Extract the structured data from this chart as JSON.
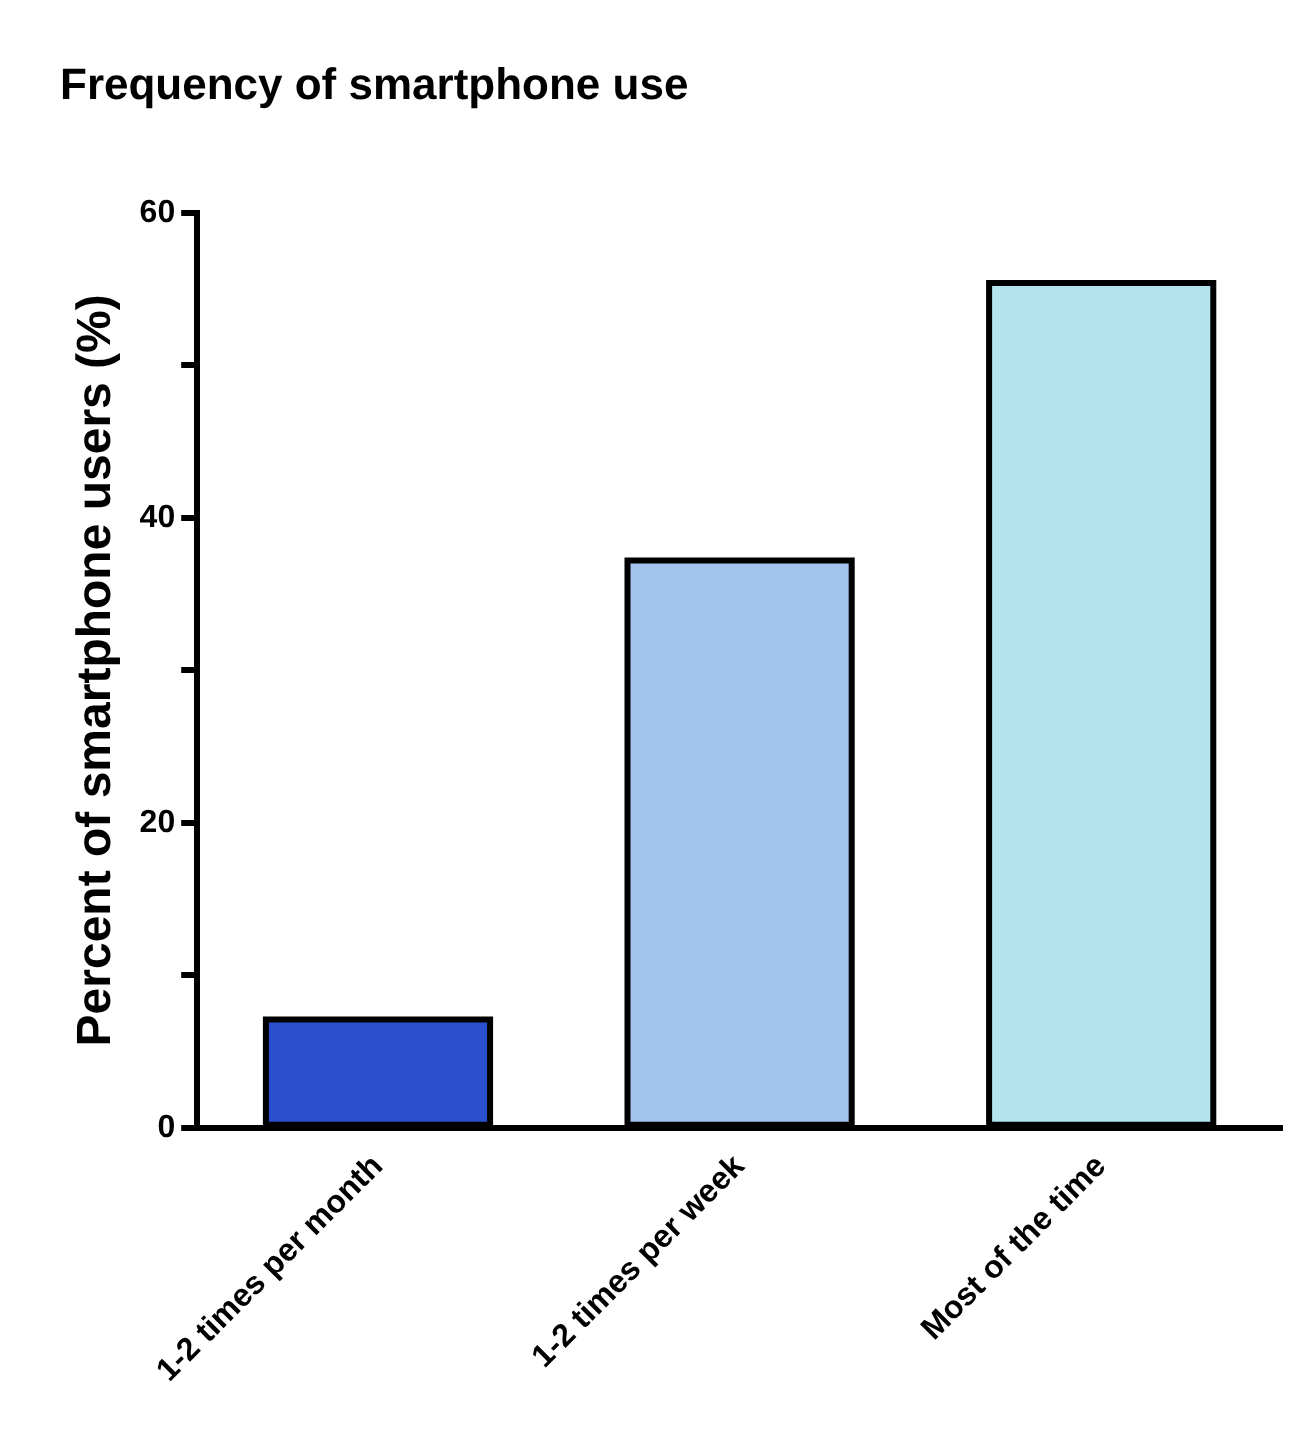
{
  "chart_data": {
    "type": "bar",
    "title": "Frequency of smartphone use",
    "ylabel": "Percent of smartphone users (%)",
    "categories": [
      "1-2 times per month",
      "1-2 times per week",
      "Most of the time"
    ],
    "values": [
      7.1,
      37.2,
      55.4
    ],
    "colors": [
      "#2a4fcf",
      "#a3c4ef",
      "#b3e3ef"
    ],
    "ylim": [
      0,
      60
    ],
    "yticks": [
      0,
      {
        "value": 10,
        "label": null
      },
      20,
      {
        "value": 30,
        "label": null
      },
      40,
      {
        "value": 50,
        "label": null
      },
      60
    ],
    "grid": false,
    "legend": false
  }
}
